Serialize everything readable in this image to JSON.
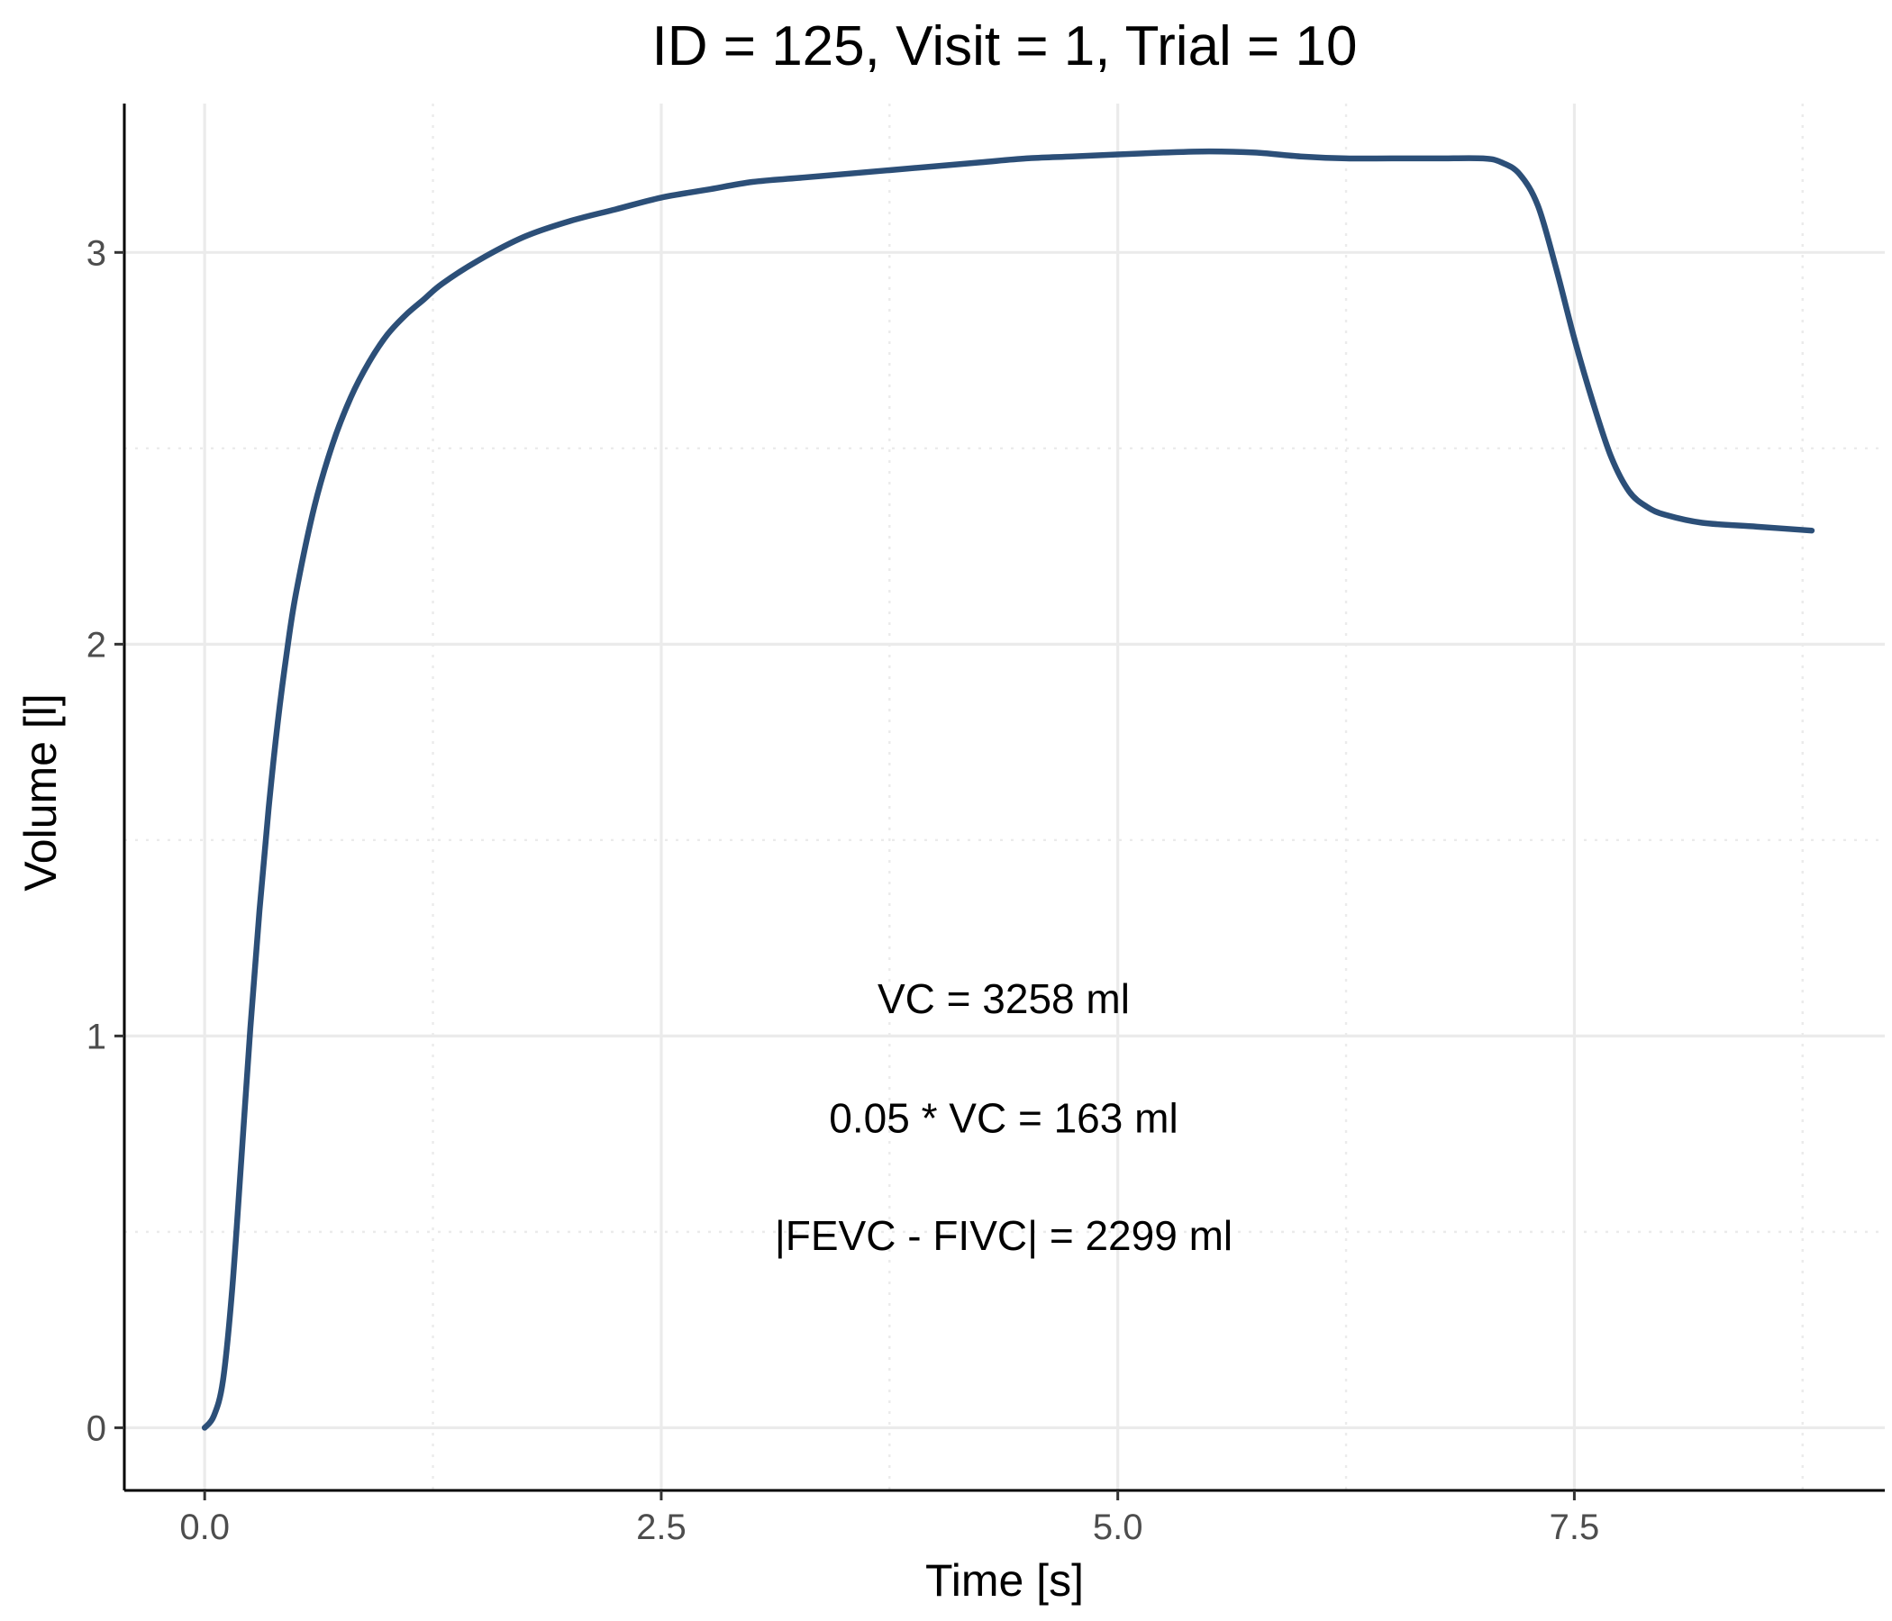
{
  "chart_data": {
    "type": "line",
    "title": "ID = 125, Visit = 1, Trial = 10",
    "xlabel": "Time [s]",
    "ylabel": "Volume [l]",
    "xlim": [
      -0.44,
      9.2
    ],
    "ylim": [
      -0.16,
      3.38
    ],
    "x_ticks": [
      0,
      2.5,
      5,
      7.5
    ],
    "x_tick_labels": [
      "0.0",
      "2.5",
      "5.0",
      "7.5"
    ],
    "y_ticks": [
      0,
      1,
      2,
      3
    ],
    "y_tick_labels": [
      "0",
      "1",
      "2",
      "3"
    ],
    "x_minor_ticks": [
      1.25,
      3.75,
      6.25,
      8.75
    ],
    "y_minor_ticks": [
      0.5,
      1.5,
      2.5
    ],
    "grid": true,
    "legend": "none",
    "colors": {
      "series": "#2c4f78",
      "grid": "#ebebeb",
      "axis": "#000000"
    },
    "series": [
      {
        "x": [
          0.0,
          0.05,
          0.1,
          0.15,
          0.2,
          0.25,
          0.3,
          0.35,
          0.4,
          0.45,
          0.5,
          0.6,
          0.7,
          0.8,
          0.9,
          1.0,
          1.1,
          1.2,
          1.3,
          1.5,
          1.75,
          2.0,
          2.25,
          2.5,
          2.75,
          3.0,
          3.25,
          3.5,
          3.75,
          4.0,
          4.25,
          4.5,
          4.75,
          5.0,
          5.25,
          5.5,
          5.75,
          6.0,
          6.25,
          6.5,
          6.75,
          7.0,
          7.1,
          7.2,
          7.3,
          7.4,
          7.5,
          7.6,
          7.7,
          7.8,
          7.9,
          8.0,
          8.2,
          8.5,
          8.8
        ],
        "y": [
          0.0,
          0.03,
          0.12,
          0.35,
          0.68,
          1.02,
          1.32,
          1.58,
          1.8,
          1.98,
          2.13,
          2.35,
          2.51,
          2.63,
          2.72,
          2.79,
          2.84,
          2.88,
          2.92,
          2.98,
          3.04,
          3.08,
          3.11,
          3.14,
          3.16,
          3.18,
          3.19,
          3.2,
          3.21,
          3.22,
          3.23,
          3.24,
          3.245,
          3.25,
          3.255,
          3.258,
          3.255,
          3.245,
          3.24,
          3.24,
          3.24,
          3.24,
          3.23,
          3.2,
          3.12,
          2.96,
          2.78,
          2.62,
          2.48,
          2.39,
          2.35,
          2.33,
          2.31,
          2.3,
          2.29
        ]
      }
    ],
    "annotations": [
      {
        "text": "VC = 3258 ml",
        "x": 4.375,
        "y": 1.095
      },
      {
        "text": "0.05 * VC = 163 ml",
        "x": 4.375,
        "y": 0.79
      },
      {
        "text": "|FEVC - FIVC| = 2299 ml",
        "x": 4.375,
        "y": 0.49
      }
    ]
  }
}
